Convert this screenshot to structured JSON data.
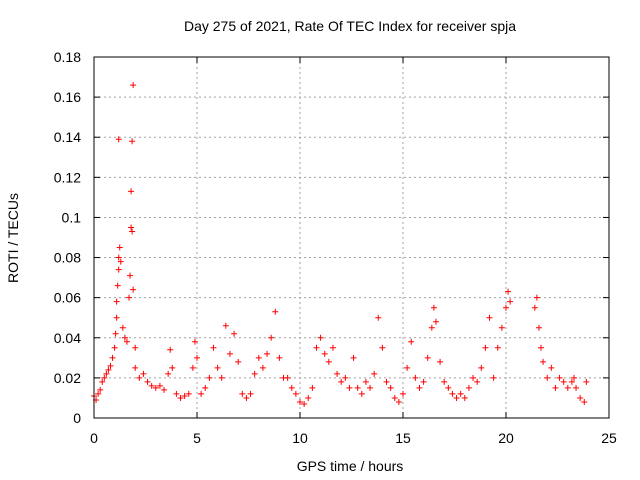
{
  "chart_data": {
    "type": "scatter",
    "title": "Day 275 of 2021, Rate Of TEC Index for receiver spja",
    "xlabel": "GPS time / hours",
    "ylabel": "ROTI / TECUs",
    "xlim": [
      0,
      25
    ],
    "ylim": [
      0,
      0.18
    ],
    "xticks": [
      0,
      5,
      10,
      15,
      20,
      25
    ],
    "yticks": [
      0,
      0.02,
      0.04,
      0.06,
      0.08,
      0.1,
      0.12,
      0.14,
      0.16,
      0.18
    ],
    "xtick_labels": [
      "0",
      "5",
      "10",
      "15",
      "20",
      "25"
    ],
    "ytick_labels": [
      "0",
      "0.02",
      "0.04",
      "0.06",
      "0.08",
      "0.1",
      "0.12",
      "0.14",
      "0.16",
      "0.18"
    ],
    "grid": true,
    "marker": "+",
    "color": "#ff0000",
    "series": [
      {
        "name": "ROTI",
        "points": [
          [
            0.0,
            0.011
          ],
          [
            0.1,
            0.009
          ],
          [
            0.2,
            0.012
          ],
          [
            0.3,
            0.014
          ],
          [
            0.4,
            0.018
          ],
          [
            0.5,
            0.02
          ],
          [
            0.6,
            0.022
          ],
          [
            0.7,
            0.024
          ],
          [
            0.8,
            0.026
          ],
          [
            0.9,
            0.03
          ],
          [
            1.0,
            0.035
          ],
          [
            1.05,
            0.042
          ],
          [
            1.1,
            0.05
          ],
          [
            1.1,
            0.058
          ],
          [
            1.15,
            0.066
          ],
          [
            1.2,
            0.074
          ],
          [
            1.2,
            0.08
          ],
          [
            1.25,
            0.085
          ],
          [
            1.3,
            0.078
          ],
          [
            1.2,
            0.139
          ],
          [
            1.4,
            0.045
          ],
          [
            1.5,
            0.04
          ],
          [
            1.6,
            0.038
          ],
          [
            1.7,
            0.06
          ],
          [
            1.75,
            0.071
          ],
          [
            1.8,
            0.113
          ],
          [
            1.85,
            0.138
          ],
          [
            1.9,
            0.166
          ],
          [
            1.8,
            0.095
          ],
          [
            1.85,
            0.093
          ],
          [
            1.9,
            0.064
          ],
          [
            2.0,
            0.035
          ],
          [
            2.0,
            0.025
          ],
          [
            2.2,
            0.02
          ],
          [
            2.4,
            0.022
          ],
          [
            2.6,
            0.018
          ],
          [
            2.8,
            0.016
          ],
          [
            3.0,
            0.015
          ],
          [
            3.2,
            0.016
          ],
          [
            3.4,
            0.014
          ],
          [
            3.6,
            0.022
          ],
          [
            3.7,
            0.034
          ],
          [
            3.8,
            0.025
          ],
          [
            4.0,
            0.012
          ],
          [
            4.2,
            0.01
          ],
          [
            4.4,
            0.011
          ],
          [
            4.6,
            0.012
          ],
          [
            4.8,
            0.025
          ],
          [
            4.9,
            0.038
          ],
          [
            5.0,
            0.03
          ],
          [
            5.2,
            0.012
          ],
          [
            5.4,
            0.015
          ],
          [
            5.6,
            0.02
          ],
          [
            5.8,
            0.035
          ],
          [
            6.0,
            0.025
          ],
          [
            6.2,
            0.02
          ],
          [
            6.4,
            0.046
          ],
          [
            6.6,
            0.032
          ],
          [
            6.8,
            0.042
          ],
          [
            7.0,
            0.028
          ],
          [
            7.2,
            0.012
          ],
          [
            7.4,
            0.01
          ],
          [
            7.6,
            0.012
          ],
          [
            7.8,
            0.022
          ],
          [
            8.0,
            0.03
          ],
          [
            8.2,
            0.025
          ],
          [
            8.4,
            0.032
          ],
          [
            8.6,
            0.04
          ],
          [
            8.8,
            0.053
          ],
          [
            9.0,
            0.03
          ],
          [
            9.2,
            0.02
          ],
          [
            9.4,
            0.02
          ],
          [
            9.6,
            0.015
          ],
          [
            9.8,
            0.012
          ],
          [
            10.0,
            0.008
          ],
          [
            10.2,
            0.007
          ],
          [
            10.4,
            0.01
          ],
          [
            10.6,
            0.015
          ],
          [
            10.8,
            0.035
          ],
          [
            11.0,
            0.04
          ],
          [
            11.2,
            0.032
          ],
          [
            11.4,
            0.028
          ],
          [
            11.6,
            0.035
          ],
          [
            11.8,
            0.022
          ],
          [
            12.0,
            0.018
          ],
          [
            12.2,
            0.02
          ],
          [
            12.4,
            0.015
          ],
          [
            12.6,
            0.03
          ],
          [
            12.8,
            0.015
          ],
          [
            13.0,
            0.012
          ],
          [
            13.2,
            0.018
          ],
          [
            13.4,
            0.015
          ],
          [
            13.6,
            0.022
          ],
          [
            13.8,
            0.05
          ],
          [
            14.0,
            0.035
          ],
          [
            14.2,
            0.018
          ],
          [
            14.4,
            0.015
          ],
          [
            14.6,
            0.01
          ],
          [
            14.8,
            0.008
          ],
          [
            15.0,
            0.012
          ],
          [
            15.2,
            0.025
          ],
          [
            15.4,
            0.038
          ],
          [
            15.6,
            0.02
          ],
          [
            15.8,
            0.015
          ],
          [
            16.0,
            0.018
          ],
          [
            16.2,
            0.03
          ],
          [
            16.4,
            0.045
          ],
          [
            16.5,
            0.055
          ],
          [
            16.6,
            0.048
          ],
          [
            16.8,
            0.028
          ],
          [
            17.0,
            0.018
          ],
          [
            17.2,
            0.015
          ],
          [
            17.4,
            0.012
          ],
          [
            17.6,
            0.01
          ],
          [
            17.8,
            0.012
          ],
          [
            18.0,
            0.01
          ],
          [
            18.2,
            0.015
          ],
          [
            18.4,
            0.02
          ],
          [
            18.6,
            0.018
          ],
          [
            18.8,
            0.025
          ],
          [
            19.0,
            0.035
          ],
          [
            19.2,
            0.05
          ],
          [
            19.4,
            0.02
          ],
          [
            19.6,
            0.035
          ],
          [
            19.8,
            0.045
          ],
          [
            20.0,
            0.055
          ],
          [
            20.1,
            0.063
          ],
          [
            20.2,
            0.058
          ],
          [
            21.4,
            0.055
          ],
          [
            21.5,
            0.06
          ],
          [
            21.6,
            0.045
          ],
          [
            21.7,
            0.035
          ],
          [
            21.8,
            0.028
          ],
          [
            22.0,
            0.02
          ],
          [
            22.2,
            0.025
          ],
          [
            22.4,
            0.015
          ],
          [
            22.6,
            0.02
          ],
          [
            22.8,
            0.018
          ],
          [
            23.0,
            0.015
          ],
          [
            23.2,
            0.018
          ],
          [
            23.3,
            0.02
          ],
          [
            23.4,
            0.015
          ],
          [
            23.6,
            0.01
          ],
          [
            23.8,
            0.008
          ],
          [
            23.9,
            0.018
          ]
        ]
      }
    ]
  }
}
